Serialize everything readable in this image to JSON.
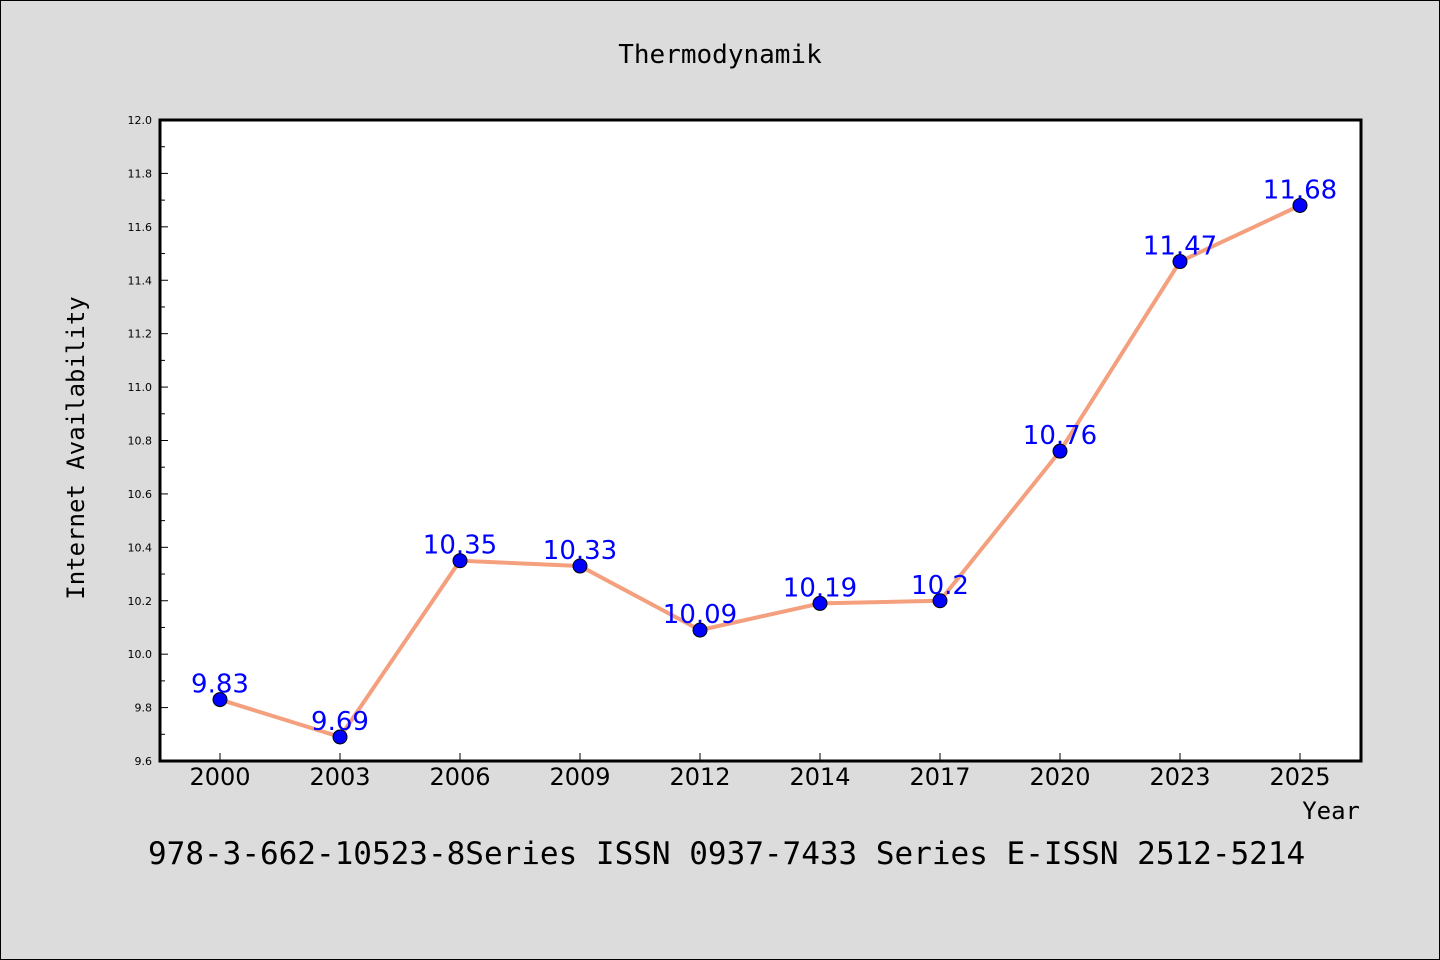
{
  "chart_data": {
    "type": "line",
    "title": "Thermodynamik",
    "xlabel": "Year",
    "ylabel": "Internet Availability",
    "categories": [
      "2000",
      "2003",
      "2006",
      "2009",
      "2012",
      "2014",
      "2017",
      "2020",
      "2023",
      "2025"
    ],
    "series": [
      {
        "values": [
          9.83,
          9.69,
          10.35,
          10.33,
          10.09,
          10.19,
          10.2,
          10.76,
          11.47,
          11.68
        ],
        "labels": [
          "9.83",
          "9.69",
          "10.35",
          "10.33",
          "10.09",
          "10.19",
          "10.2",
          "10.76",
          "11.47",
          "11.68"
        ]
      }
    ],
    "ylim": [
      9.6,
      12.0
    ],
    "yticks": [
      "9.6",
      "9.8",
      "10.0",
      "10.2",
      "10.4",
      "10.6",
      "10.8",
      "11.0",
      "11.2",
      "11.4",
      "11.6",
      "11.8",
      "12.0"
    ],
    "grid": false,
    "line_color": "#f4a07e",
    "marker_color": "#0000ff",
    "label_color": "#0000ff",
    "footer": "978-3-662-10523-8Series ISSN 0937-7433 Series E-ISSN 2512-5214"
  }
}
